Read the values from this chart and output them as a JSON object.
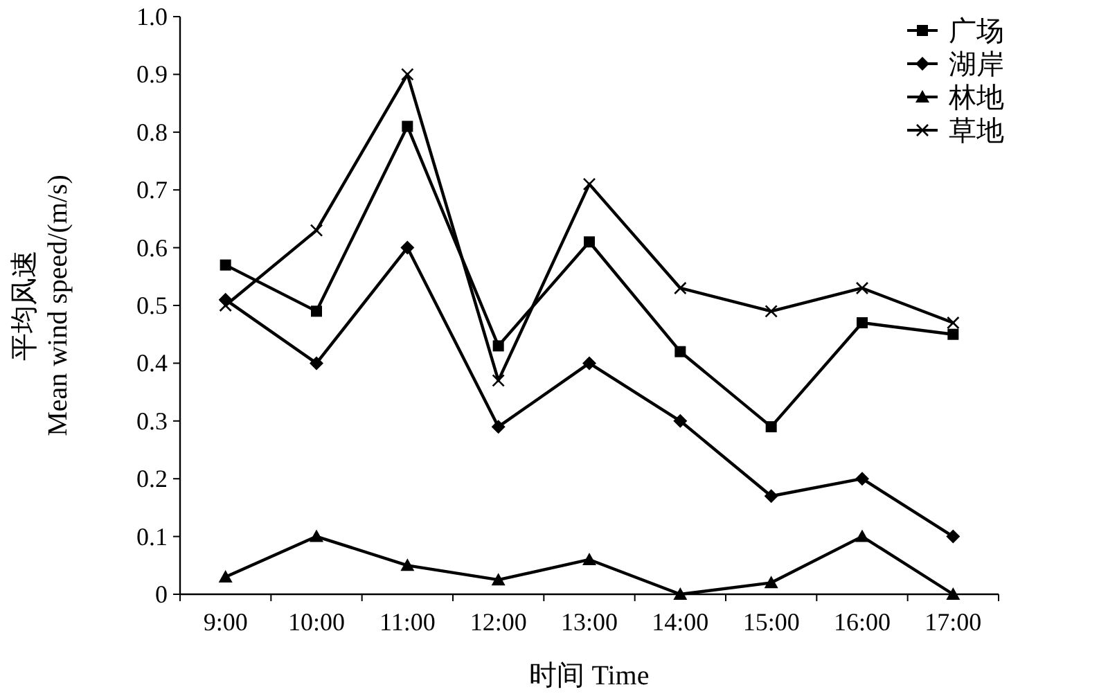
{
  "chart_data": {
    "type": "line",
    "xlabel": "时间 Time",
    "ylabel": "平均风速\nMean wind speed/(m/s)",
    "categories": [
      "9:00",
      "10:00",
      "11:00",
      "12:00",
      "13:00",
      "14:00",
      "15:00",
      "16:00",
      "17:00"
    ],
    "ylim": [
      0,
      1.0
    ],
    "yticks": [
      {
        "value": 0,
        "label": "0"
      },
      0.1,
      0.2,
      0.3,
      0.4,
      0.5,
      0.6,
      0.7,
      0.8,
      0.9,
      {
        "value": 1.0,
        "label": "1.0"
      }
    ],
    "grid": false,
    "legend": "top right",
    "line_style": "solid",
    "series": [
      {
        "name": "广场",
        "color": "#000000",
        "marker": "square",
        "values": [
          0.57,
          0.49,
          0.81,
          0.43,
          0.61,
          0.42,
          0.29,
          0.47,
          0.45
        ]
      },
      {
        "name": "湖岸",
        "color": "#000000",
        "marker": "diamond",
        "values": [
          0.51,
          0.4,
          0.6,
          0.29,
          0.4,
          0.3,
          0.17,
          0.2,
          0.1
        ]
      },
      {
        "name": "林地",
        "color": "#000000",
        "marker": "triangle",
        "values": [
          0.03,
          0.1,
          0.05,
          0.025,
          0.06,
          0.0,
          0.02,
          0.1,
          0.0
        ]
      },
      {
        "name": "草地",
        "color": "#000000",
        "marker": "cross",
        "values": [
          0.5,
          0.63,
          0.9,
          0.37,
          0.71,
          0.53,
          0.49,
          0.53,
          0.47
        ]
      }
    ]
  }
}
